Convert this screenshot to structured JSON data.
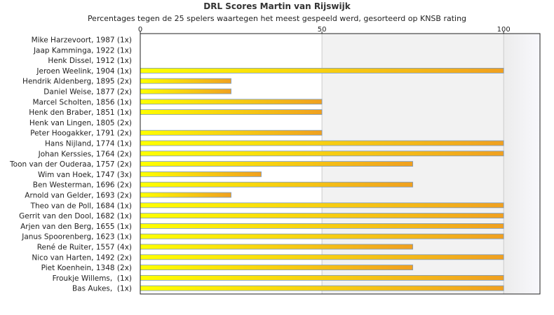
{
  "chart_data": {
    "type": "bar",
    "orientation": "horizontal",
    "title": "DRL Scores Martin van Rijswijk",
    "subtitle": "Percentages tegen de 25 spelers waartegen het meest gespeeld werd, gesorteerd op KNSB rating",
    "xlabel": "",
    "ylabel": "",
    "xlim": [
      0,
      110
    ],
    "xticks": [
      "0",
      "50",
      "100"
    ],
    "grid": true,
    "categories": [
      "Mike Harzevoort, 1987 (1x)",
      "Jaap Kamminga, 1922 (1x)",
      "Henk Dissel, 1912 (1x)",
      "Jeroen Weelink, 1904 (1x)",
      "Hendrik Aldenberg, 1895 (2x)",
      "Daniel Weise, 1877 (2x)",
      "Marcel Scholten, 1856 (1x)",
      "Henk den Braber, 1851 (1x)",
      "Henk van Lingen, 1805 (2x)",
      "Peter Hoogakker, 1791 (2x)",
      "Hans Nijland, 1774 (1x)",
      "Johan Kerssies, 1764 (2x)",
      "Toon van der Ouderaa, 1757 (2x)",
      "Wim van Hoek, 1747 (3x)",
      "Ben Westerman, 1696 (2x)",
      "Arnold van Gelder, 1693 (2x)",
      "Theo van de Poll, 1684 (1x)",
      "Gerrit van den Dool, 1682 (1x)",
      "Arjen van den Berg, 1655 (1x)",
      "Janus Spoorenberg, 1623 (1x)",
      "René de Ruiter, 1557 (4x)",
      "Nico van Harten, 1492 (2x)",
      "Piet Koenhein, 1348 (2x)",
      "Froukje Willems,  (1x)",
      "Bas Aukes,  (1x)"
    ],
    "values": [
      0,
      0,
      0,
      100,
      25,
      25,
      50,
      50,
      0,
      50,
      100,
      100,
      75,
      33.3,
      75,
      25,
      100,
      100,
      100,
      100,
      75,
      100,
      75,
      100,
      100
    ],
    "colors": {
      "bar_start": "#ffff00",
      "bar_end": "#f0a020",
      "bar_border": "#7a9cc4",
      "band_start": "#ececec",
      "band_end": "#f8f8fc",
      "axis": "#222222",
      "grid": "#cccccc"
    }
  }
}
